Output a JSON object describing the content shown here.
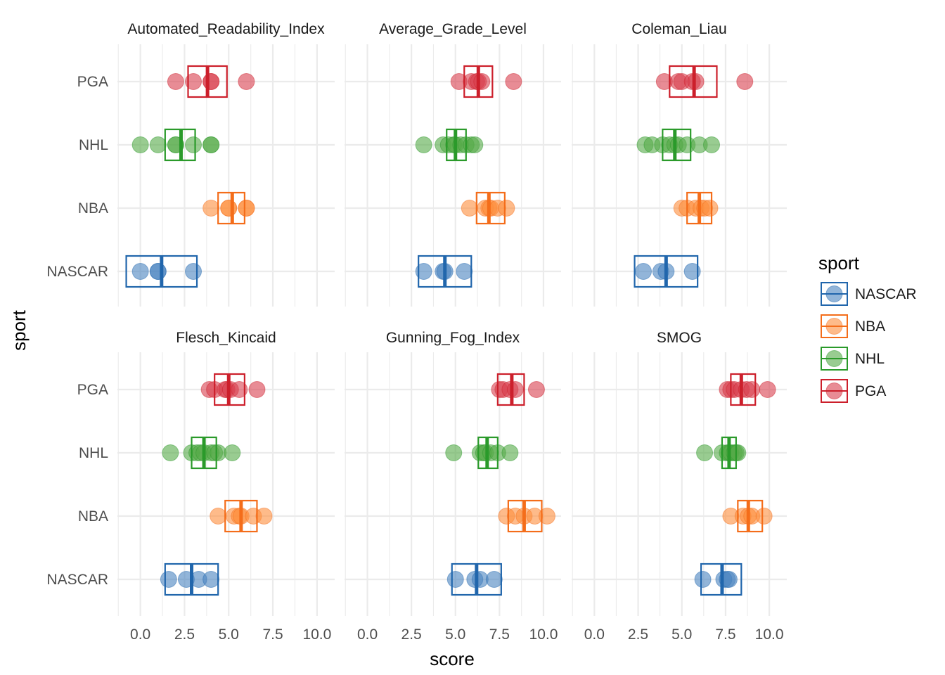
{
  "chart_data": {
    "type": "scatter",
    "facets": [
      "Automated_Readability_Index",
      "Average_Grade_Level",
      "Coleman_Liau",
      "Flesch_Kincaid",
      "Gunning_Fog_Index",
      "SMOG"
    ],
    "xlabel": "score",
    "ylabel": "sport",
    "xlim": [
      -1.3,
      11.0
    ],
    "x_ticks": [
      0,
      2.5,
      5,
      7.5,
      10
    ],
    "x_tick_labels": [
      "0.0",
      "2.5",
      "5.0",
      "7.5",
      "10.0"
    ],
    "categories": [
      "NASCAR",
      "NBA",
      "NHL",
      "PGA"
    ],
    "legend": {
      "title": "sport",
      "position": "right",
      "entries": [
        "NASCAR",
        "NBA",
        "NHL",
        "PGA"
      ]
    },
    "colors": {
      "NASCAR": "#2166ac",
      "NBA": "#f46d1a",
      "NHL": "#2a9a2a",
      "PGA": "#cc1f2b"
    },
    "point_fill": {
      "NASCAR": "#4a84c0",
      "NBA": "#fd8d3c",
      "NHL": "#55aa48",
      "PGA": "#d9404f"
    },
    "grid": true,
    "series": [
      {
        "facet": "Automated_Readability_Index",
        "groups": {
          "NASCAR": {
            "points": [
              0,
              1.0,
              1.0,
              3.0
            ],
            "mean": 1.2,
            "ci": [
              -0.8,
              3.2
            ]
          },
          "NBA": {
            "points": [
              4.0,
              5.0,
              5.0,
              6.0,
              6.0
            ],
            "mean": 5.2,
            "ci": [
              4.4,
              5.9
            ]
          },
          "NHL": {
            "points": [
              0,
              1.0,
              2.0,
              2.0,
              3.0,
              4.0,
              4.0
            ],
            "mean": 2.3,
            "ci": [
              1.4,
              3.1
            ]
          },
          "PGA": {
            "points": [
              2.0,
              3.0,
              4.0,
              4.0,
              6.0
            ],
            "mean": 3.8,
            "ci": [
              2.7,
              4.9
            ]
          }
        }
      },
      {
        "facet": "Average_Grade_Level",
        "groups": {
          "NASCAR": {
            "points": [
              3.2,
              4.3,
              4.4,
              5.5
            ],
            "mean": 4.4,
            "ci": [
              2.9,
              5.9
            ]
          },
          "NBA": {
            "points": [
              5.8,
              6.7,
              6.9,
              7.0,
              7.4,
              7.9
            ],
            "mean": 6.9,
            "ci": [
              6.2,
              7.8
            ]
          },
          "NHL": {
            "points": [
              3.2,
              4.3,
              4.6,
              4.9,
              5.0,
              5.3,
              5.6,
              5.9,
              6.1
            ],
            "mean": 5.0,
            "ci": [
              4.5,
              5.6
            ]
          },
          "PGA": {
            "points": [
              5.2,
              5.9,
              6.2,
              6.3,
              6.5,
              8.3
            ],
            "mean": 6.3,
            "ci": [
              5.5,
              7.1
            ]
          }
        }
      },
      {
        "facet": "Coleman_Liau",
        "groups": {
          "NASCAR": {
            "points": [
              2.8,
              3.8,
              4.1,
              5.6
            ],
            "mean": 4.1,
            "ci": [
              2.3,
              5.9
            ]
          },
          "NBA": {
            "points": [
              5.0,
              5.3,
              5.8,
              6.1,
              6.3,
              6.6
            ],
            "mean": 6.0,
            "ci": [
              5.3,
              6.7
            ]
          },
          "NHL": {
            "points": [
              2.9,
              3.3,
              3.9,
              4.3,
              4.6,
              4.8,
              5.3,
              6.0,
              6.7
            ],
            "mean": 4.6,
            "ci": [
              3.9,
              5.5
            ]
          },
          "PGA": {
            "points": [
              4.0,
              4.8,
              5.0,
              5.6,
              5.8,
              8.6
            ],
            "mean": 5.7,
            "ci": [
              4.3,
              7.0
            ]
          }
        }
      },
      {
        "facet": "Flesch_Kincaid",
        "groups": {
          "NASCAR": {
            "points": [
              1.6,
              2.6,
              3.3,
              4.0
            ],
            "mean": 2.9,
            "ci": [
              1.4,
              4.4
            ]
          },
          "NBA": {
            "points": [
              4.4,
              5.3,
              5.6,
              5.7,
              6.4,
              7.0
            ],
            "mean": 5.7,
            "ci": [
              4.8,
              6.6
            ]
          },
          "NHL": {
            "points": [
              1.7,
              2.9,
              3.2,
              3.4,
              3.6,
              4.0,
              4.2,
              4.4,
              5.2
            ],
            "mean": 3.6,
            "ci": [
              2.9,
              4.3
            ]
          },
          "PGA": {
            "points": [
              3.9,
              4.2,
              4.8,
              4.9,
              5.1,
              5.6,
              6.6
            ],
            "mean": 5.0,
            "ci": [
              4.2,
              5.9
            ]
          }
        }
      },
      {
        "facet": "Gunning_Fog_Index",
        "groups": {
          "NASCAR": {
            "points": [
              5.0,
              6.1,
              6.4,
              7.2
            ],
            "mean": 6.2,
            "ci": [
              4.8,
              7.6
            ]
          },
          "NBA": {
            "points": [
              7.9,
              8.4,
              8.9,
              9.5,
              10.2
            ],
            "mean": 8.9,
            "ci": [
              8.0,
              9.9
            ]
          },
          "NHL": {
            "points": [
              4.9,
              6.4,
              6.6,
              6.7,
              7.0,
              7.4,
              8.1
            ],
            "mean": 6.8,
            "ci": [
              6.3,
              7.4
            ]
          },
          "PGA": {
            "points": [
              7.5,
              7.7,
              8.1,
              8.4,
              9.6
            ],
            "mean": 8.2,
            "ci": [
              7.4,
              8.9
            ]
          }
        }
      },
      {
        "facet": "SMOG",
        "groups": {
          "NASCAR": {
            "points": [
              6.2,
              7.4,
              7.6,
              7.7
            ],
            "mean": 7.3,
            "ci": [
              6.1,
              8.4
            ]
          },
          "NBA": {
            "points": [
              7.8,
              8.5,
              8.8,
              9.0,
              9.7
            ],
            "mean": 8.8,
            "ci": [
              8.2,
              9.6
            ]
          },
          "NHL": {
            "points": [
              6.3,
              7.3,
              7.6,
              7.7,
              7.8,
              8.0,
              8.1,
              8.2
            ],
            "mean": 7.7,
            "ci": [
              7.3,
              8.1
            ]
          },
          "PGA": {
            "points": [
              7.6,
              7.8,
              8.0,
              8.4,
              8.7,
              9.0,
              9.9
            ],
            "mean": 8.4,
            "ci": [
              7.8,
              9.2
            ]
          }
        }
      }
    ]
  }
}
